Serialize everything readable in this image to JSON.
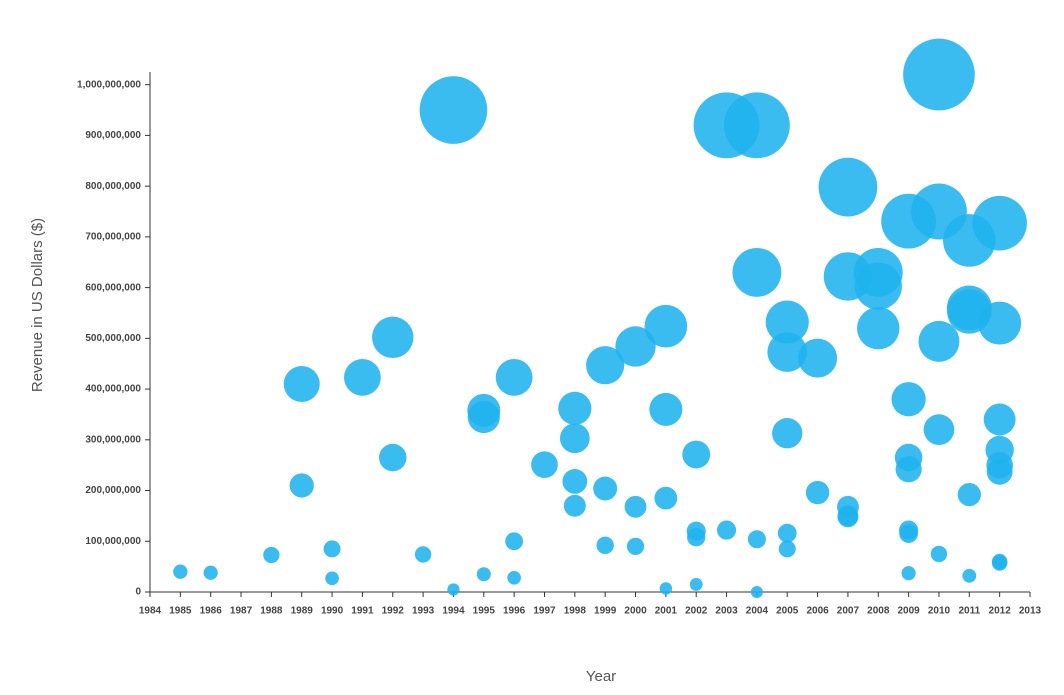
{
  "chart_data": {
    "type": "scatter",
    "x_label": "Year",
    "y_label": "Revenue in US Dollars ($)",
    "color": "#1fb3ee",
    "x": [
      1985,
      1986,
      1988,
      1989,
      1989,
      1990,
      1990,
      1991,
      1992,
      1992,
      1993,
      1994,
      1994,
      1995,
      1995,
      1995,
      1996,
      1996,
      1996,
      1997,
      1998,
      1998,
      1998,
      1998,
      1999,
      1999,
      1999,
      2000,
      2000,
      2000,
      2001,
      2001,
      2001,
      2001,
      2002,
      2002,
      2002,
      2002,
      2003,
      2003,
      2004,
      2004,
      2004,
      2004,
      2005,
      2005,
      2005,
      2005,
      2005,
      2006,
      2006,
      2007,
      2007,
      2007,
      2007,
      2007,
      2008,
      2008,
      2008,
      2009,
      2009,
      2009,
      2009,
      2009,
      2009,
      2009,
      2010,
      2010,
      2010,
      2010,
      2010,
      2011,
      2011,
      2011,
      2011,
      2011,
      2012,
      2012,
      2012,
      2012,
      2012,
      2012,
      2012,
      2012
    ],
    "values": [
      40000000,
      38000000,
      73000000,
      410000000,
      210000000,
      85000000,
      27000000,
      423000000,
      502000000,
      265000000,
      74000000,
      950000000,
      5000000,
      358000000,
      345000000,
      35000000,
      423000000,
      100000000,
      28000000,
      251000000,
      362000000,
      303000000,
      218000000,
      170000000,
      447000000,
      204000000,
      92000000,
      484000000,
      168000000,
      90000000,
      524000000,
      360000000,
      185000000,
      7000000,
      271000000,
      120000000,
      108000000,
      15000000,
      920000000,
      122000000,
      920000000,
      630000000,
      104000000,
      0,
      532000000,
      473000000,
      313000000,
      116000000,
      85000000,
      461000000,
      196000000,
      798000000,
      622000000,
      168000000,
      150000000,
      148000000,
      630000000,
      603000000,
      520000000,
      731000000,
      380000000,
      265000000,
      242000000,
      122000000,
      115000000,
      37000000,
      1020000000,
      750000000,
      494000000,
      320000000,
      75000000,
      693000000,
      560000000,
      553000000,
      192000000,
      32000000,
      727000000,
      530000000,
      340000000,
      280000000,
      250000000,
      237000000,
      60000000,
      57000000
    ],
    "xlim": [
      1984,
      2013
    ],
    "xticks": [
      1984,
      1985,
      1986,
      1987,
      1988,
      1989,
      1990,
      1991,
      1992,
      1993,
      1994,
      1995,
      1996,
      1997,
      1998,
      1999,
      2000,
      2001,
      2002,
      2003,
      2004,
      2005,
      2006,
      2007,
      2008,
      2009,
      2010,
      2011,
      2012,
      2013
    ],
    "ylim": [
      0,
      1025000000
    ],
    "yticks": [
      0,
      {
        "value": 100000000,
        "label": "100,000,000"
      },
      {
        "value": 200000000,
        "label": "200,000,000"
      },
      {
        "value": 300000000,
        "label": "300,000,000"
      },
      {
        "value": 400000000,
        "label": "400,000,000"
      },
      {
        "value": 500000000,
        "label": "500,000,000"
      },
      {
        "value": 600000000,
        "label": "600,000,000"
      },
      {
        "value": 700000000,
        "label": "700,000,000"
      },
      {
        "value": 800000000,
        "label": "800,000,000"
      },
      {
        "value": 900000000,
        "label": "900,000,000"
      },
      {
        "value": 1000000000,
        "label": "1,000,000,000"
      }
    ]
  }
}
